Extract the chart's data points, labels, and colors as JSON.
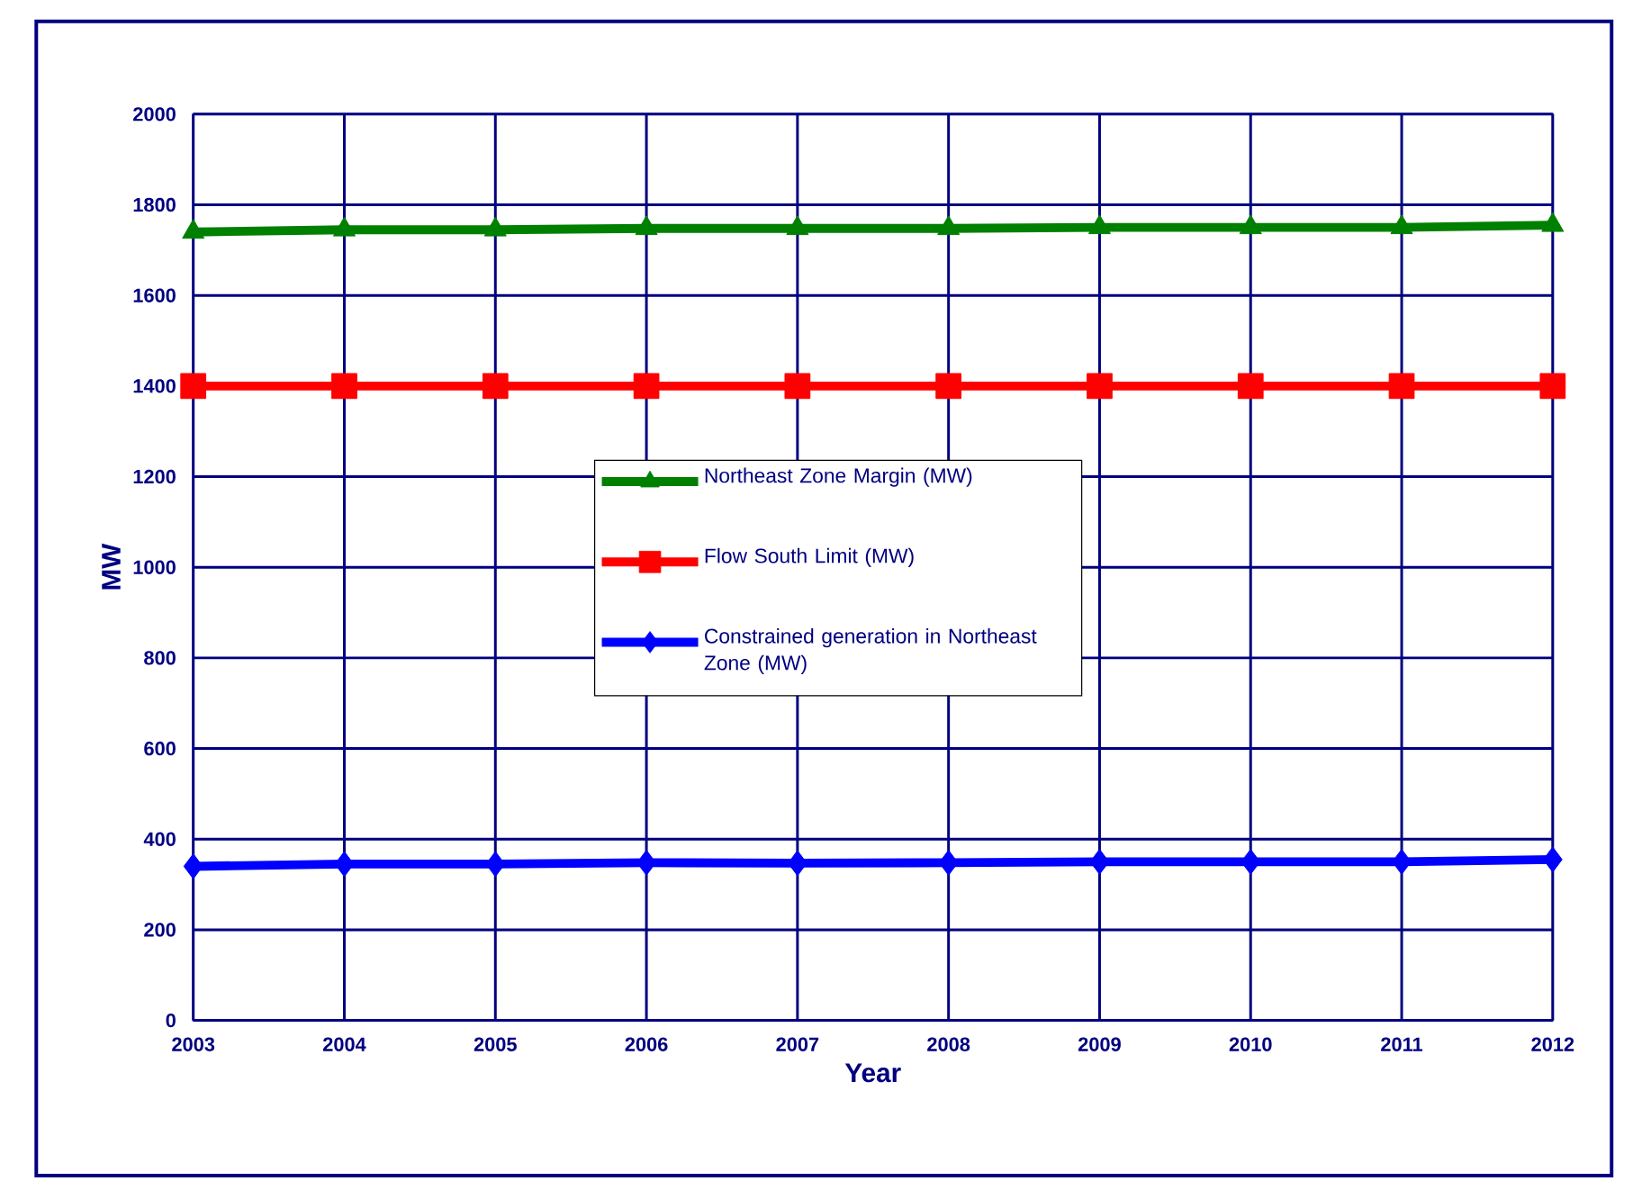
{
  "chart_data": {
    "type": "line",
    "xlabel": "Year",
    "ylabel": "MW",
    "categories": [
      "2003",
      "2004",
      "2005",
      "2006",
      "2007",
      "2008",
      "2009",
      "2010",
      "2011",
      "2012"
    ],
    "series": [
      {
        "name": "Northeast Zone Margin (MW)",
        "color": "#008000",
        "marker": "triangle",
        "values": [
          1740,
          1745,
          1745,
          1748,
          1748,
          1748,
          1750,
          1750,
          1750,
          1755
        ]
      },
      {
        "name": "Flow South Limit (MW)",
        "color": "#ff0000",
        "marker": "square",
        "values": [
          1400,
          1400,
          1400,
          1400,
          1400,
          1400,
          1400,
          1400,
          1400,
          1400
        ]
      },
      {
        "name": "Constrained generation in Northeast Zone (MW)",
        "color": "#0000ff",
        "marker": "diamond",
        "values": [
          340,
          345,
          345,
          348,
          347,
          348,
          350,
          350,
          350,
          355
        ]
      }
    ],
    "ylim": [
      0,
      2000
    ],
    "yticks": [
      0,
      200,
      400,
      600,
      800,
      1000,
      1200,
      1400,
      1600,
      1800,
      2000
    ],
    "grid": true,
    "legend": "center",
    "line_style": "solid"
  }
}
